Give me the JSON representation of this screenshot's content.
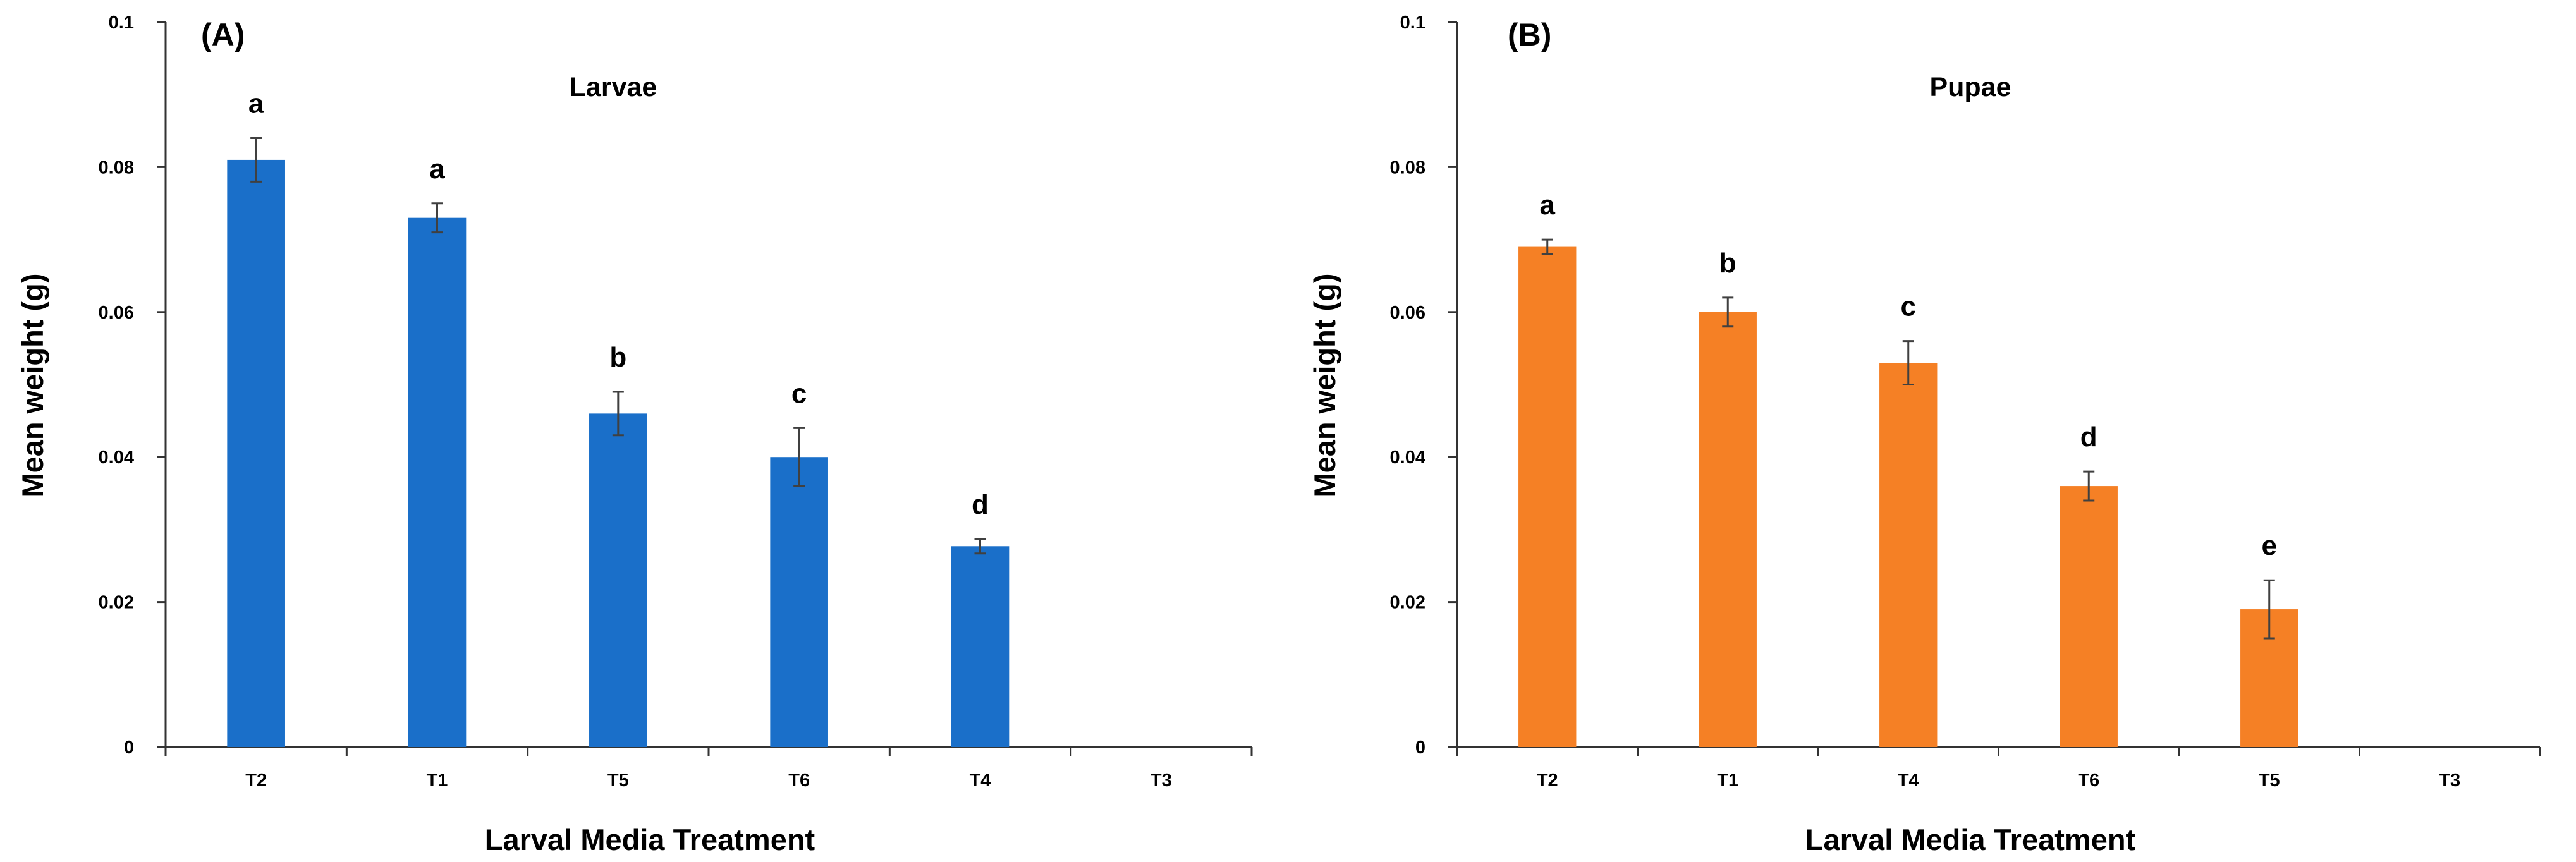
{
  "chart_data": [
    {
      "type": "bar",
      "panel_label": "(A)",
      "title": "Larvae",
      "xlabel": "Larval Media Treatment",
      "ylabel": "Mean weight (g)",
      "ylim": [
        0,
        0.1
      ],
      "yticks": [
        "0",
        "0.02",
        "0.04",
        "0.06",
        "0.08",
        "0.1"
      ],
      "categories": [
        "T2",
        "T1",
        "T5",
        "T6",
        "T4",
        "T3"
      ],
      "values": [
        0.081,
        0.073,
        0.046,
        0.04,
        0.0277,
        null
      ],
      "errors": [
        0.003,
        0.002,
        0.003,
        0.004,
        0.001,
        null
      ],
      "letters": [
        "a",
        "a",
        "b",
        "c",
        "d",
        ""
      ],
      "color": "#1a6fc9"
    },
    {
      "type": "bar",
      "panel_label": "(B)",
      "title": "Pupae",
      "xlabel": "Larval Media Treatment",
      "ylabel": "Mean weight (g)",
      "ylim": [
        0,
        0.1
      ],
      "yticks": [
        "0",
        "0.02",
        "0.04",
        "0.06",
        "0.08",
        "0.1"
      ],
      "categories": [
        "T2",
        "T1",
        "T4",
        "T6",
        "T5",
        "T3"
      ],
      "values": [
        0.069,
        0.06,
        0.053,
        0.036,
        0.019,
        null
      ],
      "errors": [
        0.001,
        0.002,
        0.003,
        0.002,
        0.004,
        null
      ],
      "letters": [
        "a",
        "b",
        "c",
        "d",
        "e",
        ""
      ],
      "color": "#f58025"
    }
  ]
}
